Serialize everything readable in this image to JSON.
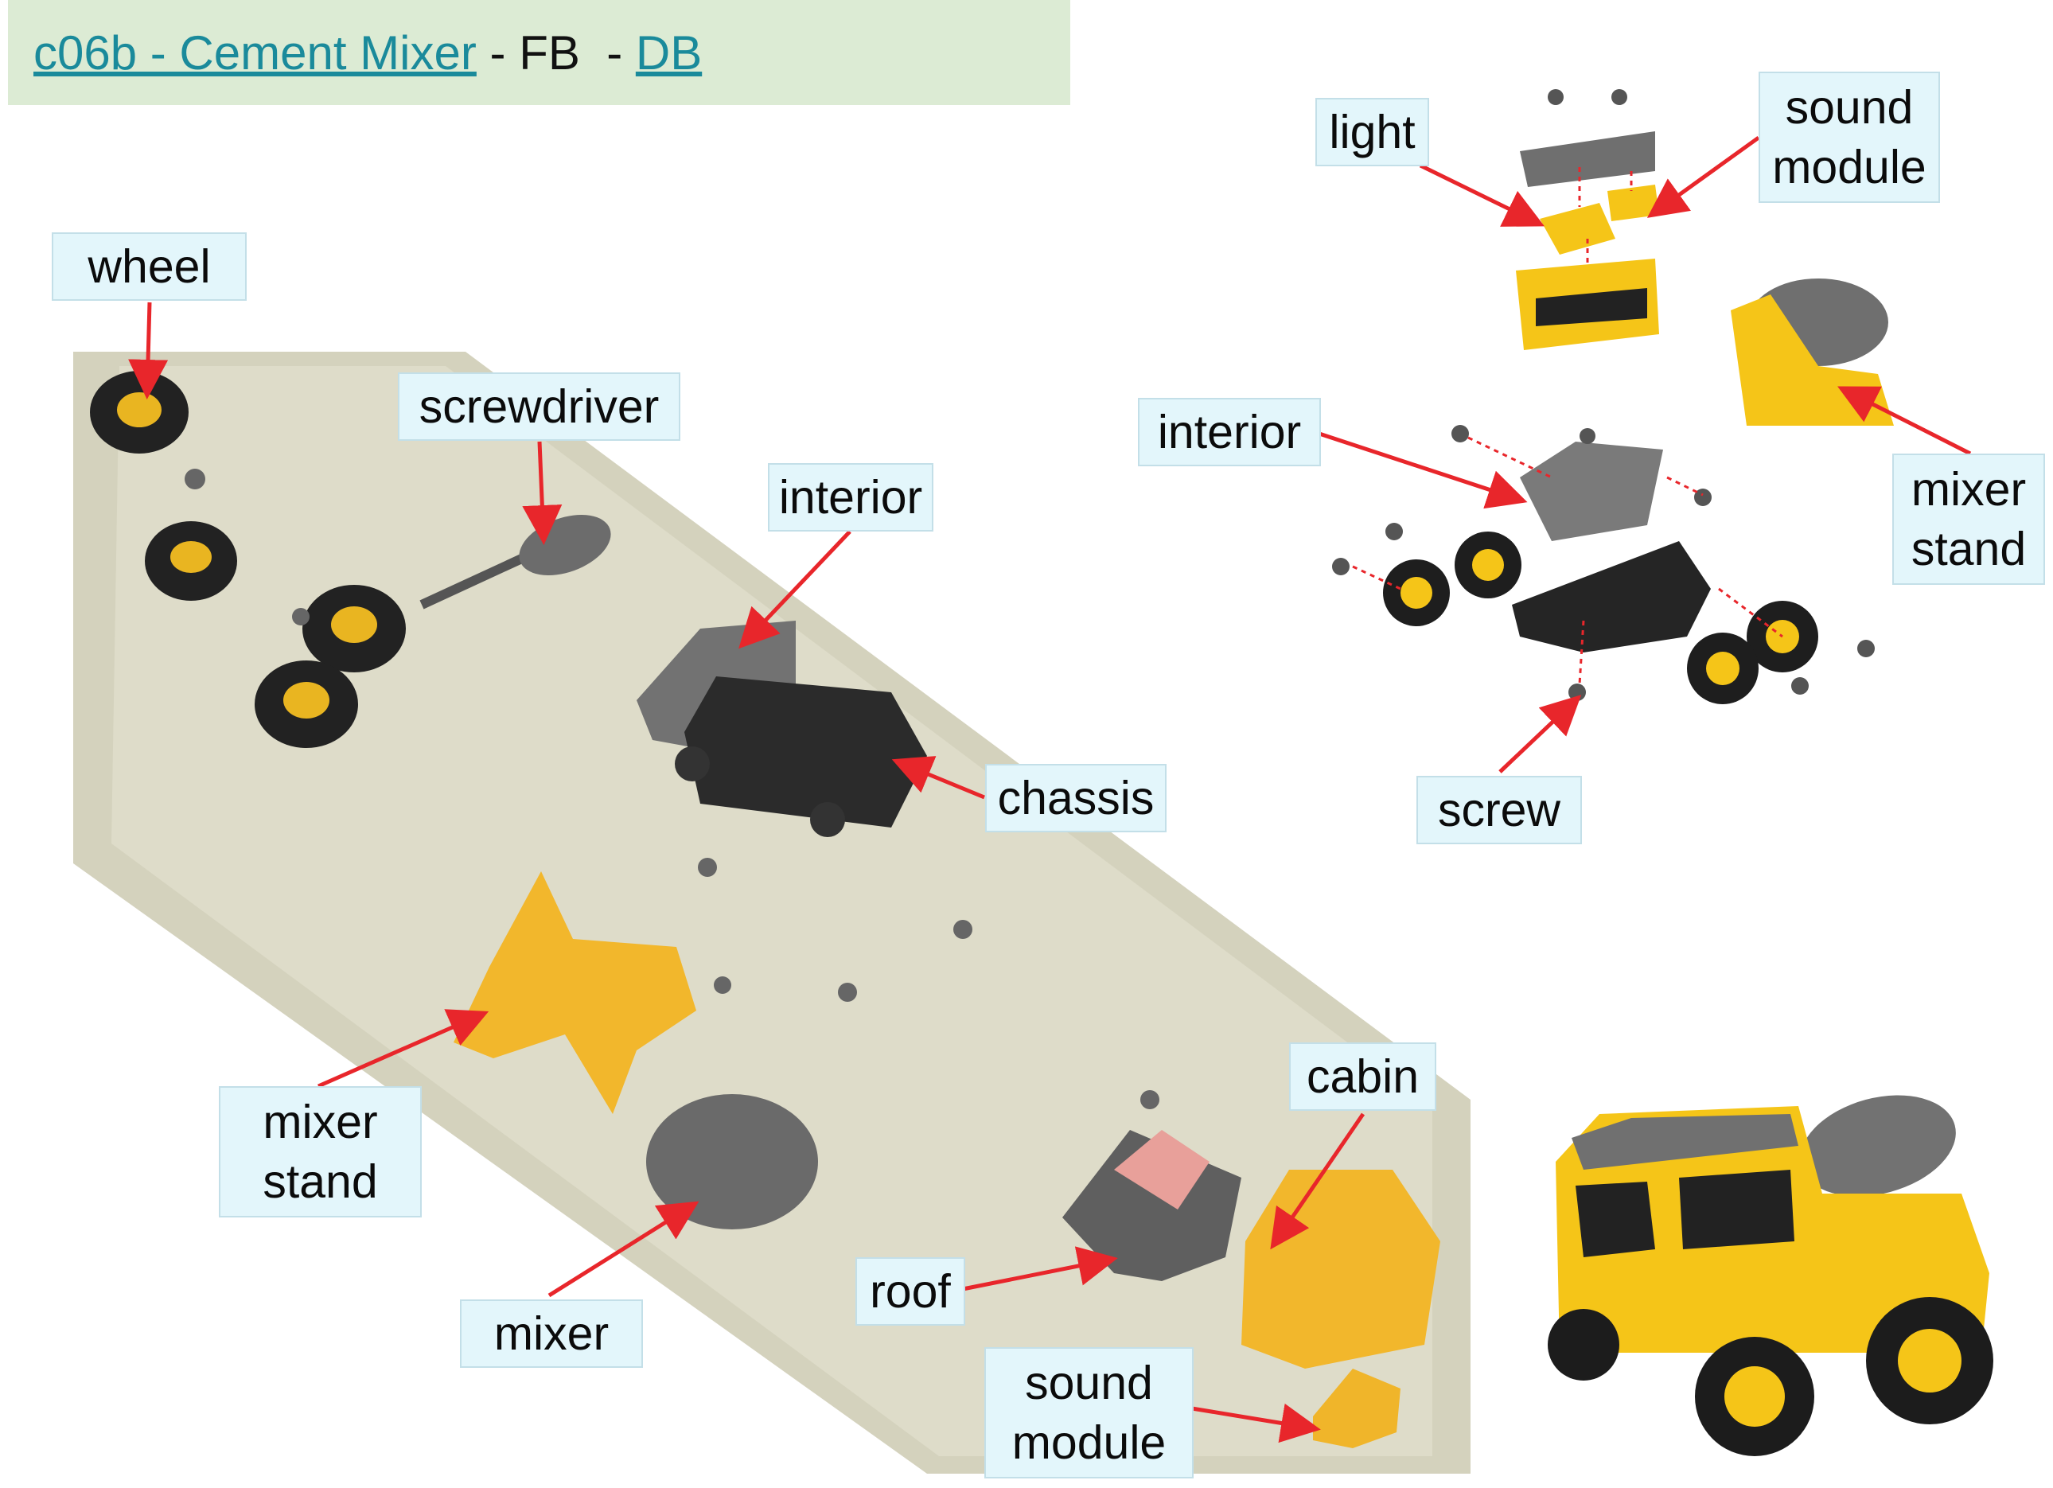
{
  "header": {
    "code_title": "c06b - Cement Mixer",
    "fb": "FB",
    "db_link": "DB",
    "sep1": " - ",
    "sep2": "  - "
  },
  "labels": {
    "wheel": "wheel",
    "screwdriver": "screwdriver",
    "interior_left": "interior",
    "chassis": "chassis",
    "mixer_stand_left": "mixer\nstand",
    "mixer": "mixer",
    "roof": "roof",
    "cabin": "cabin",
    "sound_module_left": "sound\nmodule",
    "light": "light",
    "sound_module_right": "sound\nmodule",
    "interior_right": "interior",
    "mixer_stand_right": "mixer\nstand",
    "screw": "screw"
  },
  "colors": {
    "arrow": "#e8262b",
    "label_bg": "#e3f6fb",
    "header_bg": "#dcebd4",
    "link": "#1a8a9b",
    "toy_yellow": "#f5c518",
    "toy_gray": "#6f6f6f",
    "toy_black": "#1e1e1e"
  }
}
